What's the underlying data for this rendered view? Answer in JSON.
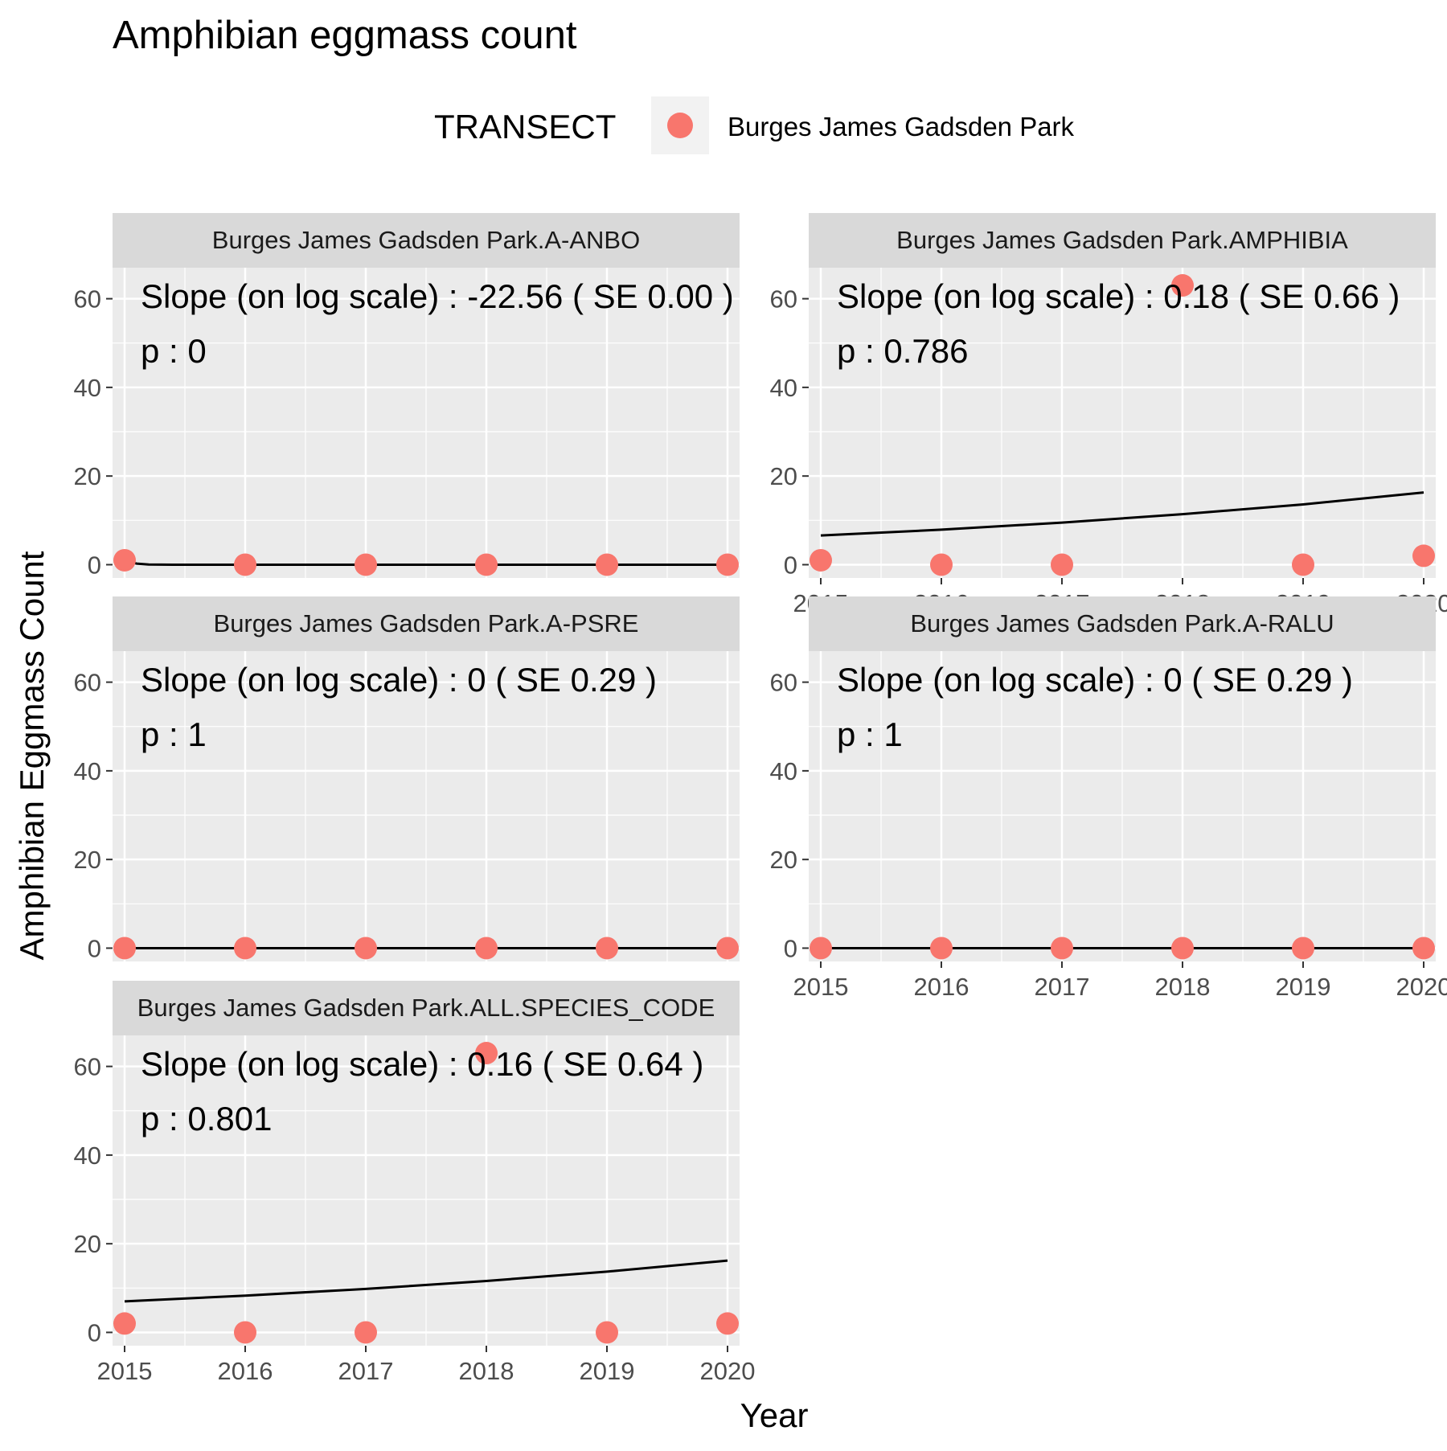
{
  "chart_data": {
    "type": "scatter",
    "title": "Amphibian eggmass count",
    "xlabel": "Year",
    "ylabel": "Amphibian Eggmass Count",
    "legend": {
      "title": "TRANSECT",
      "placement": "top",
      "entries": [
        {
          "label": "Burges James Gadsden Park",
          "color": "#F8766D"
        }
      ]
    },
    "point_color": "#F8766D",
    "fit_color": "#000000",
    "panel_background": "#EBEBEB",
    "strip_background": "#D9D9D9",
    "grid": true,
    "xlim": [
      2014.9,
      2020.1
    ],
    "ylim": [
      -3,
      67
    ],
    "x_ticks": [
      2015,
      2016,
      2017,
      2018,
      2019,
      2020
    ],
    "y_ticks": [
      0,
      20,
      40,
      60
    ],
    "panels": [
      {
        "strip": "Burges James Gadsden Park.A-ANBO",
        "slope_text": "Slope (on log scale) :  -22.56  ( SE  0.00 )",
        "p_text": "p : 0",
        "x": [
          2015,
          2016,
          2017,
          2018,
          2019,
          2020
        ],
        "y": [
          1,
          0,
          0,
          0,
          0,
          0
        ],
        "fit": {
          "x": [
            2015,
            2015.05,
            2015.1,
            2015.2,
            2015.4,
            2016,
            2017,
            2018,
            2019,
            2020
          ],
          "y": [
            1,
            0.6,
            0.25,
            0.05,
            0,
            0,
            0,
            0,
            0,
            0
          ]
        },
        "show_x_axis": false
      },
      {
        "strip": "Burges James Gadsden Park.AMPHIBIA",
        "slope_text": "Slope (on log scale) :  0.18  ( SE  0.66 )",
        "p_text": "p : 0.786",
        "x": [
          2015,
          2016,
          2017,
          2018,
          2019,
          2020
        ],
        "y": [
          1,
          0,
          0,
          63,
          0,
          2
        ],
        "fit": {
          "x": [
            2015,
            2016,
            2017,
            2018,
            2019,
            2020
          ],
          "y": [
            6.6,
            7.9,
            9.5,
            11.4,
            13.6,
            16.3
          ]
        },
        "show_x_axis": true
      },
      {
        "strip": "Burges James Gadsden Park.A-PSRE",
        "slope_text": "Slope (on log scale) :  0  ( SE  0.29 )",
        "p_text": "p : 1",
        "x": [
          2015,
          2016,
          2017,
          2018,
          2019,
          2020
        ],
        "y": [
          0,
          0,
          0,
          0,
          0,
          0
        ],
        "fit": {
          "x": [
            2015,
            2020
          ],
          "y": [
            0,
            0
          ]
        },
        "show_x_axis": false
      },
      {
        "strip": "Burges James Gadsden Park.A-RALU",
        "slope_text": "Slope (on log scale) :  0  ( SE  0.29 )",
        "p_text": "p : 1",
        "x": [
          2015,
          2016,
          2017,
          2018,
          2019,
          2020
        ],
        "y": [
          0,
          0,
          0,
          0,
          0,
          0
        ],
        "fit": {
          "x": [
            2015,
            2020
          ],
          "y": [
            0,
            0
          ]
        },
        "show_x_axis": true
      },
      {
        "strip": "Burges James Gadsden Park.ALL.SPECIES_CODE",
        "slope_text": "Slope (on log scale) :  0.16  ( SE  0.64 )",
        "p_text": "p : 0.801",
        "x": [
          2015,
          2016,
          2017,
          2018,
          2019,
          2020
        ],
        "y": [
          2,
          0,
          0,
          63,
          0,
          2
        ],
        "fit": {
          "x": [
            2015,
            2016,
            2017,
            2018,
            2019,
            2020
          ],
          "y": [
            7.0,
            8.3,
            9.8,
            11.6,
            13.7,
            16.2
          ]
        },
        "show_x_axis": true
      }
    ]
  }
}
